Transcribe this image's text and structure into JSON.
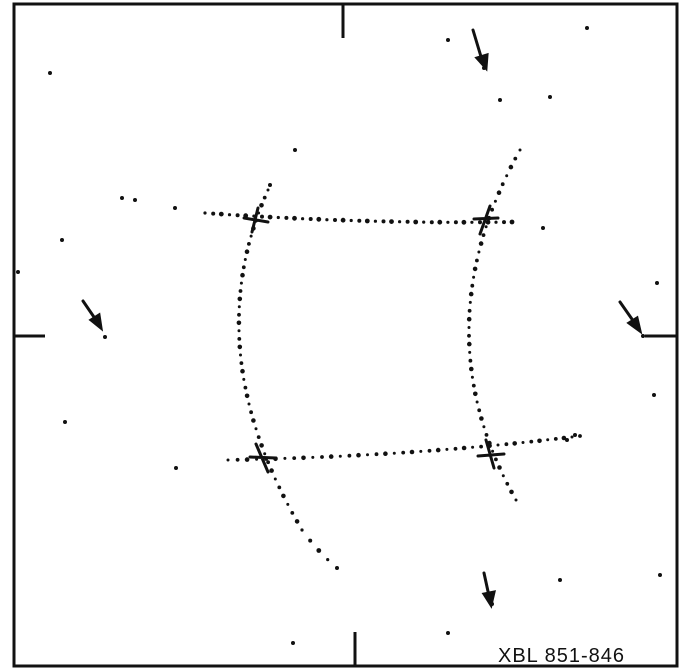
{
  "caption": "XBL 851-846"
}
